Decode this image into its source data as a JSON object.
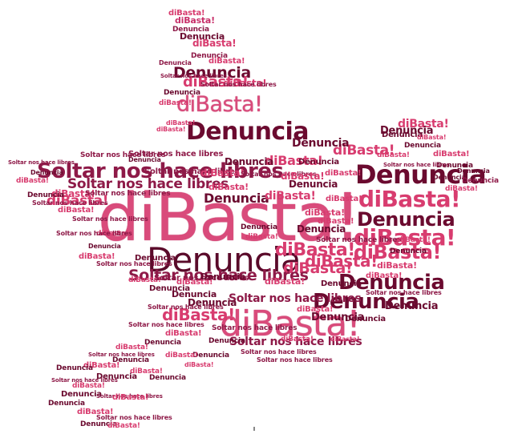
{
  "words": {
    "w1": "diBasta!",
    "w2": "Denuncia",
    "w3": "Soltar nos hace libres"
  },
  "colors": {
    "pink": "#d83c6f",
    "dark": "#6b0a2f",
    "mid": "#8e1a48",
    "bright": "#c8306a"
  }
}
